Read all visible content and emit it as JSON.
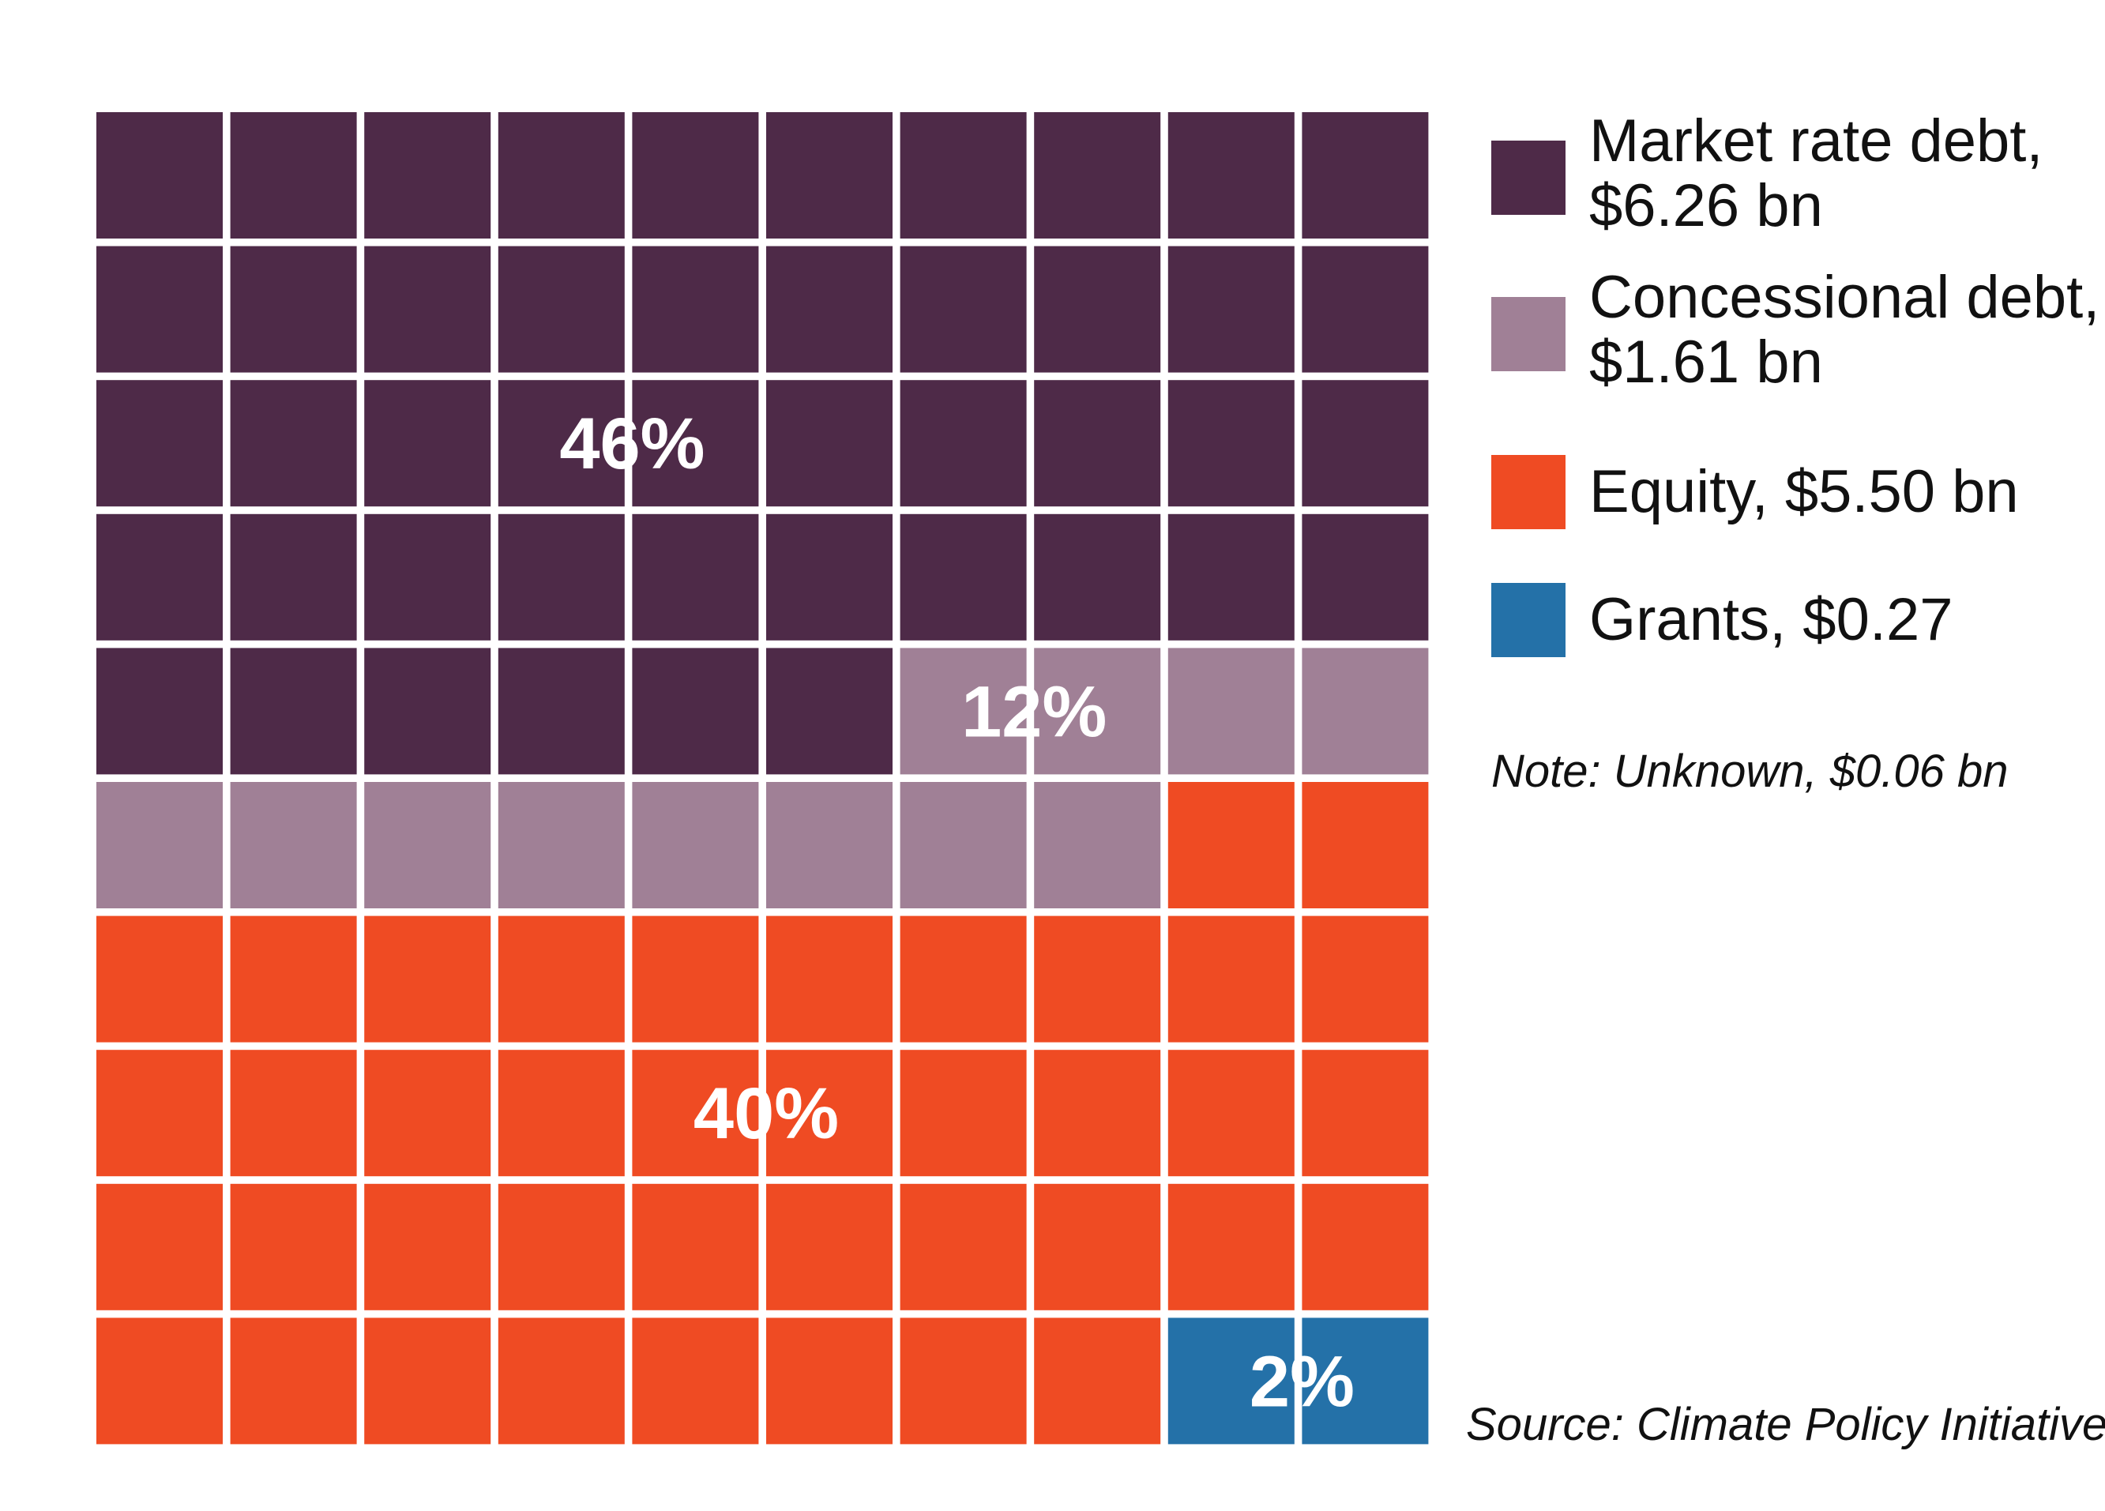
{
  "chart_data": {
    "type": "waffle",
    "grid": {
      "rows": 10,
      "cols": 10
    },
    "series": [
      {
        "name": "Market rate debt",
        "value_label": "$6.26 bn",
        "value_bn": 6.26,
        "percent": 46,
        "percent_label": "46%",
        "color": "#4E2A48",
        "squares": 46,
        "legend_line1": "Market rate debt,",
        "legend_line2": "$6.26 bn"
      },
      {
        "name": "Concessional debt",
        "value_label": "$1.61 bn",
        "value_bn": 1.61,
        "percent": 12,
        "percent_label": "12%",
        "color": "#A08096",
        "squares": 12,
        "legend_line1": "Concessional debt,",
        "legend_line2": "$1.61 bn"
      },
      {
        "name": "Equity",
        "value_label": "$5.50 bn",
        "value_bn": 5.5,
        "percent": 40,
        "percent_label": "40%",
        "color": "#EF4B23",
        "squares": 40,
        "legend_line1": "Equity, $5.50 bn",
        "legend_line2": ""
      },
      {
        "name": "Grants",
        "value_label": "$0.27",
        "value_bn": 0.27,
        "percent": 2,
        "percent_label": "2%",
        "color": "#2471A8",
        "squares": 2,
        "legend_line1": "Grants, $0.27",
        "legend_line2": ""
      }
    ],
    "note": "Note: Unknown, $0.06 bn",
    "source": "Source: Climate Policy Initiative"
  }
}
